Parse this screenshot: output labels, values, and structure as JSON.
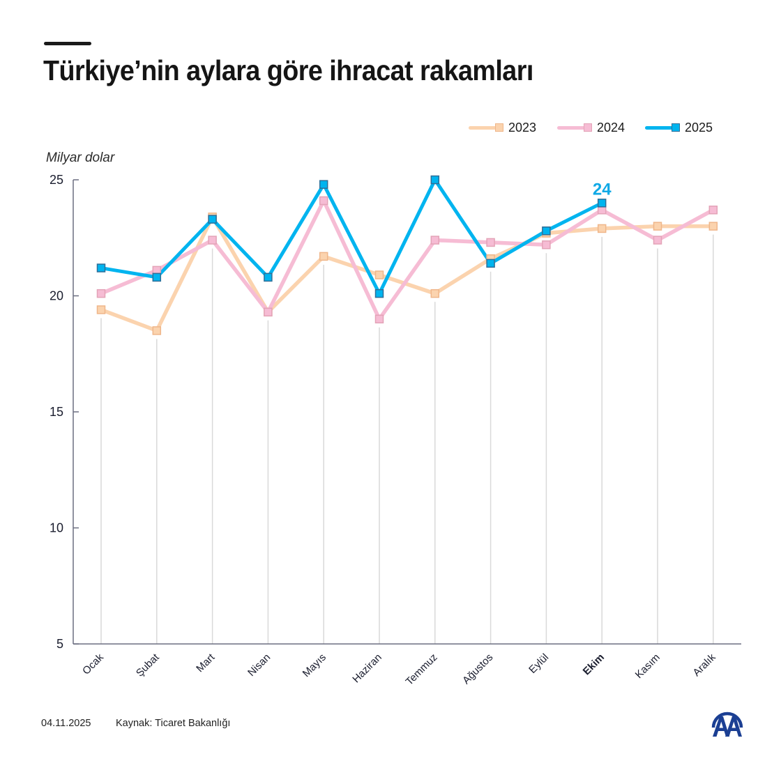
{
  "header": {
    "title": "Türkiye’nin aylara göre ihracat rakamları"
  },
  "legend": {
    "items": [
      {
        "label": "2023",
        "color": "#fbd3ae",
        "marker_border": "#efb68a"
      },
      {
        "label": "2024",
        "color": "#f6bcd4",
        "marker_border": "#e3a3b7"
      },
      {
        "label": "2025",
        "color": "#00b4ef",
        "marker_border": "#2f6f98"
      }
    ]
  },
  "unit_label": "Milyar dolar",
  "annotation": {
    "label": "24",
    "month_index": 9,
    "color": "#0fa9e6"
  },
  "footer": {
    "date": "04.11.2025",
    "source": "Kaynak: Ticaret Bakanlığı"
  },
  "logo": {
    "name": "AA",
    "color": "#1b3f93"
  },
  "chart_data": {
    "type": "line",
    "title": "Türkiye’nin aylara göre ihracat rakamları",
    "xlabel": "",
    "ylabel": "Milyar dolar",
    "ylim": [
      5,
      25
    ],
    "yticks": [
      5,
      10,
      15,
      20,
      25
    ],
    "grid": "vertical lines at each month",
    "legend_position": "top-right",
    "highlighted_category": "Ekim",
    "categories": [
      "Ocak",
      "Şubat",
      "Mart",
      "Nisan",
      "Mayıs",
      "Haziran",
      "Temmuz",
      "Ağustos",
      "Eylül",
      "Ekim",
      "Kasım",
      "Aralık"
    ],
    "series": [
      {
        "name": "2023",
        "color": "#fbd3ae",
        "values": [
          19.4,
          18.5,
          23.4,
          19.3,
          21.7,
          20.9,
          20.1,
          21.6,
          22.7,
          22.9,
          23.0,
          23.0
        ]
      },
      {
        "name": "2024",
        "color": "#f6bcd4",
        "values": [
          20.1,
          21.1,
          22.4,
          19.3,
          24.1,
          19.0,
          22.4,
          22.3,
          22.2,
          23.7,
          22.4,
          23.7
        ]
      },
      {
        "name": "2025",
        "color": "#00b4ef",
        "values": [
          21.2,
          20.8,
          23.3,
          20.8,
          24.8,
          20.1,
          25.0,
          21.4,
          22.8,
          24.0,
          null,
          null
        ]
      }
    ],
    "annotations": [
      {
        "category": "Ekim",
        "series": "2025",
        "text": "24"
      }
    ]
  }
}
